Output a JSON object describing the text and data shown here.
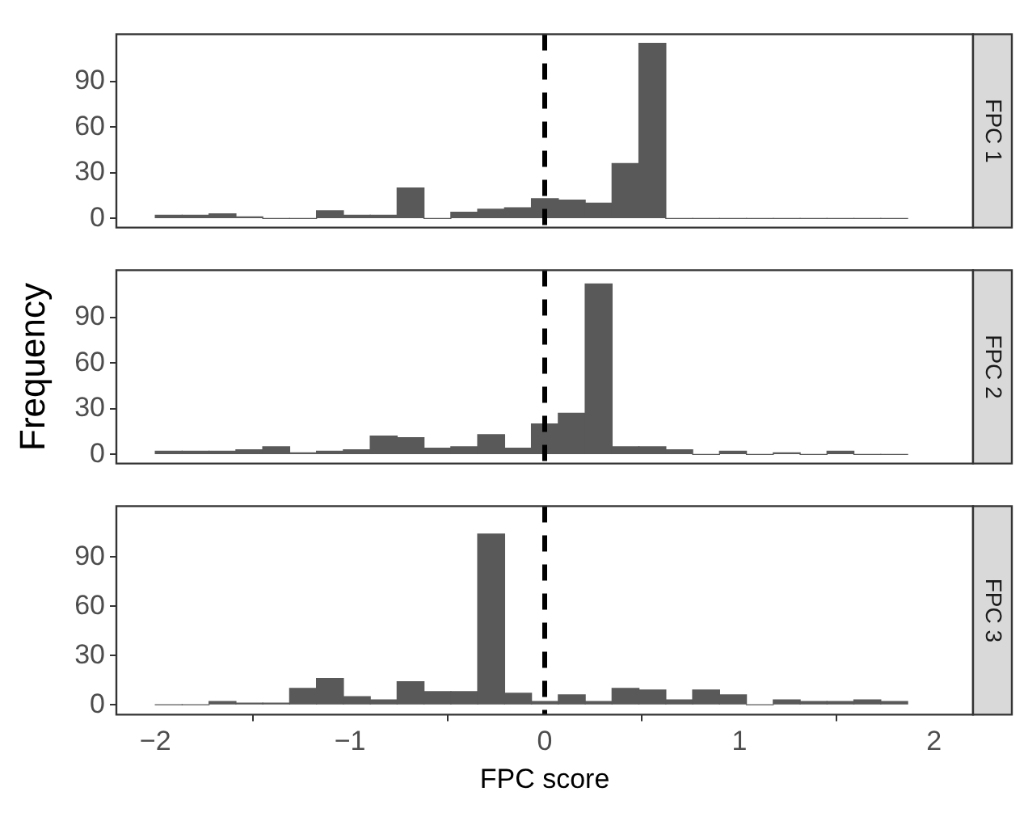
{
  "chart_data": [
    {
      "type": "histogram",
      "title": "FPC 1",
      "bins": [
        -2.0,
        -1.862,
        -1.724,
        -1.586,
        -1.448,
        -1.31,
        -1.172,
        -1.034,
        -0.896,
        -0.758,
        -0.62,
        -0.482,
        -0.344,
        -0.206,
        -0.068,
        0.07,
        0.208,
        0.346,
        0.484,
        0.622,
        0.76,
        0.898,
        1.036,
        1.174,
        1.312,
        1.45,
        1.588,
        1.726,
        1.864
      ],
      "values": [
        2,
        2,
        3,
        1,
        0,
        0,
        5,
        2,
        2,
        20,
        0,
        4,
        6,
        7,
        13,
        12,
        10,
        36,
        115,
        0,
        0,
        0,
        0,
        0,
        0,
        0,
        0,
        0
      ],
      "color": "#595959",
      "xlim": [
        -2.2,
        2.2
      ],
      "ylim": [
        -6,
        121
      ],
      "yticks": [
        0,
        30,
        60,
        90
      ],
      "tick_labels": "y",
      "grid": false,
      "ref_lines": [
        {
          "axis": "x",
          "value": 0,
          "color": "#000000",
          "line_style": "dashed"
        }
      ]
    },
    {
      "type": "histogram",
      "title": "FPC 2",
      "ylabel": "Frequency",
      "bins": [
        -2.0,
        -1.862,
        -1.724,
        -1.586,
        -1.448,
        -1.31,
        -1.172,
        -1.034,
        -0.896,
        -0.758,
        -0.62,
        -0.482,
        -0.344,
        -0.206,
        -0.068,
        0.07,
        0.208,
        0.346,
        0.484,
        0.622,
        0.76,
        0.898,
        1.036,
        1.174,
        1.312,
        1.45,
        1.588,
        1.726,
        1.864
      ],
      "values": [
        2,
        2,
        2,
        3,
        5,
        1,
        2,
        3,
        12,
        11,
        4,
        5,
        13,
        4,
        20,
        27,
        112,
        5,
        5,
        3,
        0,
        2,
        0,
        1,
        0,
        2,
        0,
        0
      ],
      "color": "#595959",
      "xlim": [
        -2.2,
        2.2
      ],
      "ylim": [
        -6,
        121
      ],
      "yticks": [
        0,
        30,
        60,
        90
      ],
      "tick_labels": "y",
      "grid": false,
      "ref_lines": [
        {
          "axis": "x",
          "value": 0,
          "color": "#000000",
          "line_style": "dashed"
        }
      ]
    },
    {
      "type": "histogram",
      "title": "FPC 3",
      "xlabel": "FPC score",
      "bins": [
        -2.0,
        -1.862,
        -1.724,
        -1.586,
        -1.448,
        -1.31,
        -1.172,
        -1.034,
        -0.896,
        -0.758,
        -0.62,
        -0.482,
        -0.344,
        -0.206,
        -0.068,
        0.07,
        0.208,
        0.346,
        0.484,
        0.622,
        0.76,
        0.898,
        1.036,
        1.174,
        1.312,
        1.45,
        1.588,
        1.726,
        1.864
      ],
      "values": [
        0,
        0,
        2,
        1,
        1,
        10,
        16,
        5,
        3,
        14,
        8,
        8,
        104,
        7,
        2,
        6,
        2,
        10,
        9,
        3,
        9,
        6,
        0,
        3,
        2,
        2,
        3,
        2
      ],
      "color": "#595959",
      "xlim": [
        -2.2,
        2.2
      ],
      "xticks": [
        {
          "value": -2,
          "label": "−2"
        },
        {
          "value": -1,
          "label": "−1"
        },
        0,
        1,
        2
      ],
      "ylim": [
        -6,
        121
      ],
      "yticks": [
        0,
        30,
        60,
        90
      ],
      "grid": false,
      "ref_lines": [
        {
          "axis": "x",
          "value": 0,
          "color": "#000000",
          "line_style": "dashed"
        }
      ]
    }
  ]
}
